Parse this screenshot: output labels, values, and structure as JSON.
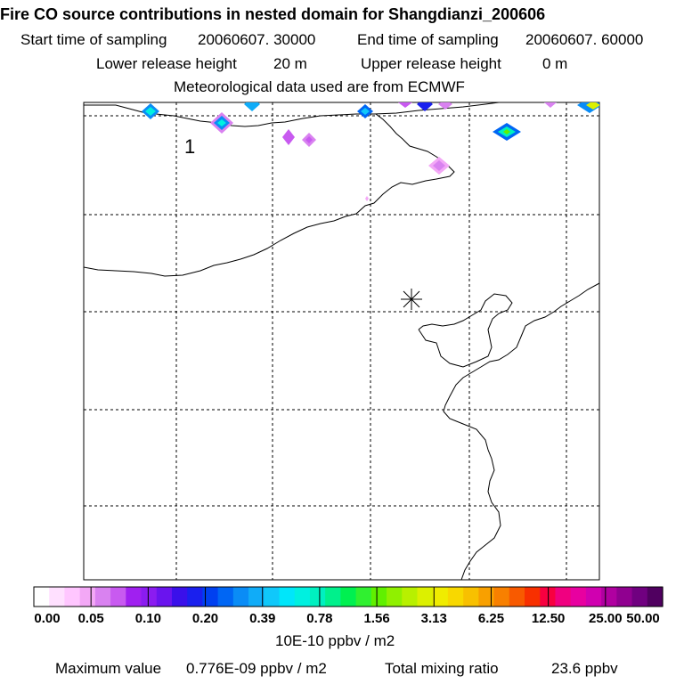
{
  "title": "Fire CO source contributions in nested domain for Shangdianzi_200606",
  "sampling": {
    "start_label": "Start time of sampling",
    "start_value": "20060607. 30000",
    "end_label": "End time of sampling",
    "end_value": "20060607. 60000"
  },
  "release": {
    "lower_label": "Lower release height",
    "lower_value": "20 m",
    "upper_label": "Upper release height",
    "upper_value": "0 m"
  },
  "met_note": "Meteorological data used are from ECMWF",
  "map": {
    "grid_label": "1",
    "station_marker": "receptor-star"
  },
  "legend": {
    "tick_labels": [
      "0.00",
      "0.05",
      "0.10",
      "0.20",
      "0.39",
      "0.78",
      "1.56",
      "3.13",
      "6.25",
      "12.50",
      "25.00",
      "50.00"
    ],
    "units": "10E-10 ppbv / m2",
    "colors": [
      "#ffffff",
      "#ffe0ff",
      "#ffc6ff",
      "#f3a8f6",
      "#d982f0",
      "#c85af0",
      "#a020f0",
      "#8b1cf0",
      "#6a14ee",
      "#3a10ea",
      "#1a20ee",
      "#0040f0",
      "#0066f4",
      "#0a8cf6",
      "#10acf8",
      "#10c8fa",
      "#00e6fa",
      "#00f0e0",
      "#00f0c0",
      "#00f08c",
      "#00f050",
      "#30f030",
      "#60f000",
      "#90f000",
      "#b8f000",
      "#dcf000",
      "#f0ec00",
      "#f8d800",
      "#f8c000",
      "#f8a000",
      "#f88000",
      "#f85a00",
      "#f83000",
      "#f80040",
      "#f00080",
      "#e800a0",
      "#d000b0",
      "#b000a0",
      "#900090",
      "#700080",
      "#500060"
    ]
  },
  "footer": {
    "max_label": "Maximum value",
    "max_value": "0.776E-09 ppbv / m2",
    "total_label": "Total mixing ratio",
    "total_value": "23.6 ppbv"
  }
}
